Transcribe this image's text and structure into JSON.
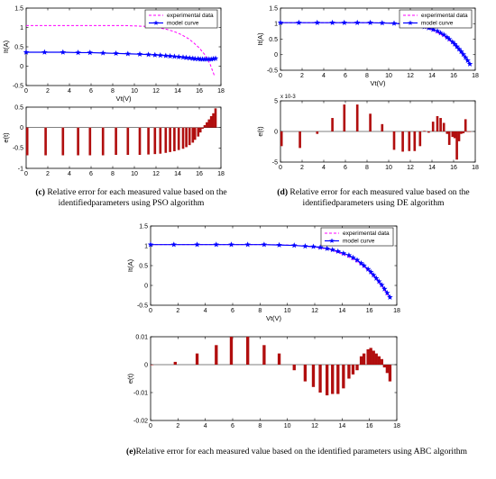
{
  "colors": {
    "experimental": "#ff00ff",
    "model": "#0000ff",
    "error_bar": "#b10e0e",
    "axis": "#000000"
  },
  "captions": [
    {
      "letter": "(c)",
      "text": " Relative error for each measured value based on the identifiedparameters using PSO algorithm"
    },
    {
      "letter": "(d)",
      "text": " Relative error for each measured value based on the identifiedparameters using DE algorithm"
    },
    {
      "letter": "(e)",
      "text": "Relative error for each measured value based on the identified parameters using ABC algorithm"
    }
  ],
  "chart_data": [
    {
      "id": "c_iv",
      "type": "line",
      "xlabel": "Vt(V)",
      "ylabel": "It(A)",
      "xlim": [
        0,
        18
      ],
      "ylim": [
        -0.5,
        1.5
      ],
      "xticks": [
        "0",
        "2",
        "4",
        "6",
        "8",
        "10",
        "12",
        "14",
        "16",
        "18"
      ],
      "yticks": [
        "-0.5",
        "0",
        "0.5",
        "1",
        "1.5"
      ],
      "legend": [
        "experimental data",
        "model curve"
      ],
      "legend_position": "top-right",
      "series": [
        {
          "name": "experimental data",
          "style": "dashed",
          "x": [
            0,
            1,
            2,
            3,
            4,
            5,
            6,
            7,
            8,
            9,
            10,
            11,
            12,
            12.5,
            13,
            13.5,
            14,
            14.5,
            15,
            15.5,
            16,
            16.5,
            17,
            17.4
          ],
          "y": [
            1.05,
            1.05,
            1.05,
            1.05,
            1.05,
            1.05,
            1.05,
            1.05,
            1.05,
            1.05,
            1.04,
            1.03,
            1.0,
            0.98,
            0.95,
            0.91,
            0.86,
            0.79,
            0.71,
            0.6,
            0.47,
            0.3,
            0.05,
            -0.25
          ]
        },
        {
          "name": "model curve",
          "style": "solid-star",
          "x": [
            0,
            1.7,
            3.4,
            4.8,
            5.9,
            7.1,
            8.3,
            9.4,
            10.5,
            11.3,
            11.9,
            12.4,
            12.9,
            13.3,
            13.7,
            14.1,
            14.5,
            14.8,
            15.1,
            15.4,
            15.6,
            15.9,
            16.1,
            16.3,
            16.5,
            16.7,
            16.9,
            17.1,
            17.3,
            17.5
          ],
          "y": [
            0.36,
            0.36,
            0.36,
            0.35,
            0.35,
            0.34,
            0.33,
            0.32,
            0.31,
            0.3,
            0.29,
            0.28,
            0.27,
            0.26,
            0.25,
            0.24,
            0.23,
            0.22,
            0.21,
            0.2,
            0.19,
            0.19,
            0.18,
            0.18,
            0.18,
            0.18,
            0.18,
            0.18,
            0.19,
            0.2
          ]
        }
      ]
    },
    {
      "id": "c_err",
      "type": "bar",
      "xlabel": "",
      "ylabel": "e(t)",
      "xlim": [
        0,
        18
      ],
      "ylim": [
        -1,
        0.5
      ],
      "xticks": [
        "0",
        "2",
        "4",
        "6",
        "8",
        "10",
        "12",
        "14",
        "16",
        "18"
      ],
      "yticks": [
        "-1",
        "-0.5",
        "0",
        "0.5"
      ],
      "series": [
        {
          "x": [
            0.1,
            1.8,
            3.4,
            4.8,
            5.9,
            7.1,
            8.3,
            9.4,
            10.5,
            11.3,
            11.9,
            12.4,
            12.9,
            13.3,
            13.7,
            14.1,
            14.5,
            14.8,
            15.1,
            15.4,
            15.6,
            15.9,
            16.1,
            16.3,
            16.5,
            16.7,
            16.9,
            17.1,
            17.3,
            17.5
          ],
          "y": [
            -0.68,
            -0.68,
            -0.68,
            -0.68,
            -0.68,
            -0.68,
            -0.67,
            -0.67,
            -0.67,
            -0.66,
            -0.65,
            -0.64,
            -0.62,
            -0.6,
            -0.58,
            -0.55,
            -0.52,
            -0.48,
            -0.43,
            -0.37,
            -0.3,
            -0.22,
            -0.12,
            -0.03,
            0.06,
            0.13,
            0.2,
            0.28,
            0.35,
            0.47
          ]
        }
      ]
    },
    {
      "id": "d_iv",
      "type": "line",
      "xlabel": "Vt(V)",
      "ylabel": "It(A)",
      "xlim": [
        0,
        18
      ],
      "ylim": [
        -0.5,
        1.5
      ],
      "xticks": [
        "0",
        "2",
        "4",
        "6",
        "8",
        "10",
        "12",
        "14",
        "16",
        "18"
      ],
      "yticks": [
        "-0.5",
        "0",
        "0.5",
        "1",
        "1.5"
      ],
      "legend": [
        "experimental data",
        "model curve"
      ],
      "legend_position": "top-right",
      "series": [
        {
          "name": "experimental data",
          "style": "dashed",
          "x": [
            0,
            2,
            4,
            6,
            8,
            10,
            11,
            12,
            12.5,
            13,
            13.5,
            14,
            14.5,
            15,
            15.5,
            16,
            16.5,
            17,
            17.4
          ],
          "y": [
            1.03,
            1.03,
            1.03,
            1.03,
            1.03,
            1.02,
            1.0,
            0.97,
            0.94,
            0.91,
            0.86,
            0.79,
            0.71,
            0.61,
            0.49,
            0.34,
            0.16,
            -0.06,
            -0.3
          ]
        },
        {
          "name": "model curve",
          "style": "solid-star",
          "x": [
            0,
            1.7,
            3.4,
            4.8,
            5.9,
            7.1,
            8.3,
            9.4,
            10.5,
            11.3,
            11.9,
            12.4,
            12.9,
            13.3,
            13.7,
            14.1,
            14.5,
            14.8,
            15.1,
            15.4,
            15.6,
            15.9,
            16.1,
            16.3,
            16.5,
            16.7,
            16.9,
            17.1,
            17.3,
            17.5
          ],
          "y": [
            1.03,
            1.03,
            1.03,
            1.03,
            1.03,
            1.03,
            1.03,
            1.02,
            1.01,
            0.99,
            0.98,
            0.96,
            0.93,
            0.9,
            0.86,
            0.81,
            0.76,
            0.7,
            0.64,
            0.56,
            0.5,
            0.41,
            0.34,
            0.26,
            0.18,
            0.1,
            0.01,
            -0.09,
            -0.19,
            -0.3
          ]
        }
      ]
    },
    {
      "id": "d_err",
      "type": "bar",
      "xlabel": "",
      "ylabel": "e(t)",
      "exponent": "x 10-3",
      "xlim": [
        0,
        18
      ],
      "ylim": [
        -5,
        5
      ],
      "xticks": [
        "0",
        "2",
        "4",
        "6",
        "8",
        "10",
        "12",
        "14",
        "16",
        "18"
      ],
      "yticks": [
        "-5",
        "0",
        "5"
      ],
      "series": [
        {
          "x": [
            0.1,
            1.8,
            3.4,
            4.8,
            5.9,
            7.1,
            8.3,
            9.4,
            10.5,
            11.3,
            11.9,
            12.4,
            12.9,
            13.3,
            13.7,
            14.1,
            14.5,
            14.8,
            15.1,
            15.4,
            15.6,
            15.9,
            16.1,
            16.3,
            16.5,
            16.7,
            16.9,
            17.1,
            17.3,
            17.5
          ],
          "y": [
            -2.4,
            -2.7,
            -0.4,
            2.2,
            4.4,
            4.4,
            2.9,
            1.2,
            -3.0,
            -3.3,
            -3.2,
            -3.2,
            -2.4,
            0.1,
            -0.2,
            1.6,
            2.5,
            2.2,
            1.4,
            -0.4,
            -2.2,
            -0.9,
            -1.1,
            -4.6,
            -1.6,
            -0.4,
            -0.3,
            2.0,
            0.0,
            0.0
          ]
        }
      ]
    },
    {
      "id": "e_iv",
      "type": "line",
      "xlabel": "Vt(V)",
      "ylabel": "It(A)",
      "xlim": [
        0,
        18
      ],
      "ylim": [
        -0.5,
        1.5
      ],
      "xticks": [
        "0",
        "2",
        "4",
        "6",
        "8",
        "10",
        "12",
        "14",
        "16",
        "18"
      ],
      "yticks": [
        "-0.5",
        "0",
        "0.5",
        "1",
        "1.5"
      ],
      "legend": [
        "experimental data",
        "model curve"
      ],
      "legend_position": "top-right",
      "series": [
        {
          "name": "experimental data",
          "style": "dashed",
          "x": [
            0,
            2,
            4,
            6,
            8,
            10,
            11,
            12,
            12.5,
            13,
            13.5,
            14,
            14.5,
            15,
            15.5,
            16,
            16.5,
            17,
            17.4
          ],
          "y": [
            1.03,
            1.03,
            1.03,
            1.03,
            1.03,
            1.02,
            1.0,
            0.97,
            0.94,
            0.91,
            0.86,
            0.79,
            0.71,
            0.61,
            0.49,
            0.34,
            0.16,
            -0.06,
            -0.3
          ]
        },
        {
          "name": "model curve",
          "style": "solid-star",
          "x": [
            0,
            1.7,
            3.4,
            4.8,
            5.9,
            7.1,
            8.3,
            9.4,
            10.5,
            11.3,
            11.9,
            12.4,
            12.9,
            13.3,
            13.7,
            14.1,
            14.5,
            14.8,
            15.1,
            15.4,
            15.6,
            15.9,
            16.1,
            16.3,
            16.5,
            16.7,
            16.9,
            17.1,
            17.3,
            17.5
          ],
          "y": [
            1.03,
            1.03,
            1.03,
            1.03,
            1.03,
            1.03,
            1.03,
            1.02,
            1.01,
            0.99,
            0.98,
            0.96,
            0.93,
            0.9,
            0.86,
            0.81,
            0.76,
            0.7,
            0.64,
            0.56,
            0.5,
            0.41,
            0.34,
            0.26,
            0.18,
            0.1,
            0.01,
            -0.09,
            -0.19,
            -0.3
          ]
        }
      ]
    },
    {
      "id": "e_err",
      "type": "bar",
      "xlabel": "",
      "ylabel": "e(t)",
      "xlim": [
        0,
        18
      ],
      "ylim": [
        -0.02,
        0.01
      ],
      "xticks": [
        "0",
        "2",
        "4",
        "6",
        "8",
        "10",
        "12",
        "14",
        "16",
        "18"
      ],
      "yticks": [
        "-0.02",
        "-0.01",
        "0",
        "0.01"
      ],
      "series": [
        {
          "x": [
            0.1,
            1.8,
            3.4,
            4.8,
            5.9,
            7.1,
            8.3,
            9.4,
            10.5,
            11.3,
            11.9,
            12.4,
            12.9,
            13.3,
            13.7,
            14.1,
            14.5,
            14.8,
            15.1,
            15.4,
            15.6,
            15.9,
            16.1,
            16.3,
            16.5,
            16.7,
            16.9,
            17.1,
            17.3,
            17.5
          ],
          "y": [
            0.0,
            0.001,
            0.004,
            0.007,
            0.01,
            0.01,
            0.007,
            0.004,
            -0.002,
            -0.006,
            -0.008,
            -0.01,
            -0.011,
            -0.0105,
            -0.0105,
            -0.0085,
            -0.005,
            -0.0035,
            -0.002,
            0.003,
            0.004,
            0.0055,
            0.006,
            0.005,
            0.004,
            0.003,
            0.002,
            -0.001,
            -0.003,
            -0.006
          ]
        }
      ]
    }
  ]
}
